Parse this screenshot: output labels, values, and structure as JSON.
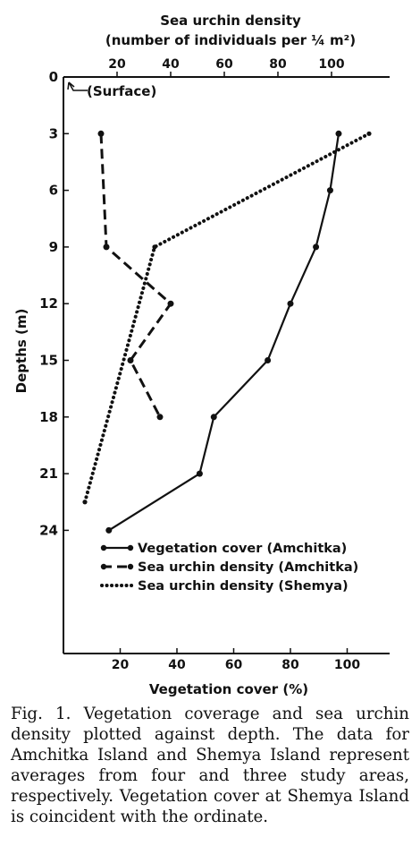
{
  "chart_data": {
    "type": "line",
    "top_axis": {
      "title_line1": "Sea urchin density",
      "title_line2": "(number of individuals per ¼ m²)",
      "range": [
        0,
        120
      ],
      "ticks": [
        20,
        40,
        60,
        80,
        100
      ],
      "tick_labels": [
        "20",
        "40",
        "60",
        "80",
        "100"
      ]
    },
    "bottom_axis": {
      "title": "Vegetation cover (%)",
      "range": [
        0,
        110
      ],
      "ticks": [
        20,
        40,
        60,
        80,
        100
      ],
      "tick_labels": [
        "20",
        "40",
        "60",
        "80",
        "100"
      ]
    },
    "y_axis": {
      "title": "Depths (m)",
      "range": [
        0,
        24
      ],
      "inverted": true,
      "ticks": [
        0,
        3,
        6,
        9,
        12,
        15,
        18,
        21,
        24
      ],
      "tick_labels": [
        "0",
        "3",
        "6",
        "9",
        "12",
        "15",
        "18",
        "21",
        "24"
      ]
    },
    "annotation": "(Surface)",
    "series": [
      {
        "name": "Vegetation cover (Amchitka)",
        "axis": "bottom",
        "style": "solid",
        "depth": [
          3,
          6,
          9,
          12,
          15,
          18,
          21,
          24
        ],
        "values": [
          97,
          94,
          89,
          80,
          72,
          53,
          48,
          16
        ]
      },
      {
        "name": "Sea urchin density (Amchitka)",
        "axis": "top",
        "style": "dashed",
        "depth": [
          3,
          9,
          12,
          15,
          18
        ],
        "values": [
          14,
          16,
          40,
          25,
          36
        ]
      },
      {
        "name": "Sea urchin density (Shemya)",
        "axis": "top",
        "style": "dotted",
        "depth": [
          3,
          9,
          22.5
        ],
        "values": [
          114,
          34,
          8
        ]
      }
    ],
    "legend_position": "bottom-center"
  },
  "caption": "Fig. 1. Vegetation coverage and sea urchin density plotted against depth. The data for Amchitka Island and Shemya Island represent averages from four and three study areas, respectively. Vegetation cover at Shemya Island is coincident with the ordinate.",
  "colors": {
    "ink": "#111111",
    "background": "#ffffff"
  }
}
